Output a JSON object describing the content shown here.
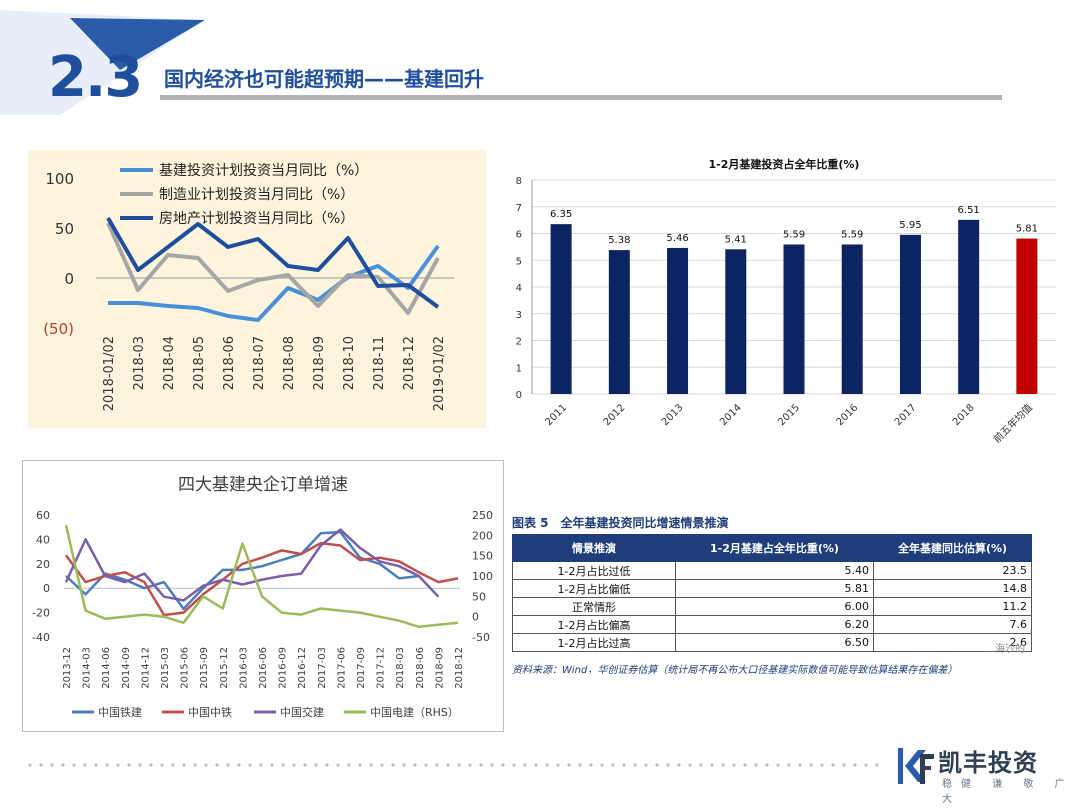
{
  "header": {
    "section_number": "2.3",
    "title": "国内经济也可能超预期——基建回升"
  },
  "colors": {
    "brand_blue": "#1f4e9c",
    "dark_navy": "#0c2461",
    "red": "#c00000"
  },
  "chart_data": [
    {
      "type": "line",
      "x": [
        "2018-01/02",
        "2018-03",
        "2018-04",
        "2018-05",
        "2018-06",
        "2018-07",
        "2018-08",
        "2018-09",
        "2018-10",
        "2018-11",
        "2018-12",
        "2019-01/02"
      ],
      "series": [
        {
          "name": "基建投资计划投资当月同比（%）",
          "color": "#4a90d9",
          "values": [
            -25,
            -25,
            -28,
            -30,
            -38,
            -42,
            -10,
            -22,
            1,
            12,
            -10,
            32
          ]
        },
        {
          "name": "制造业计划投资当月同比（%）",
          "color": "#a6a6a6",
          "values": [
            55,
            -12,
            23,
            20,
            -13,
            -2,
            3,
            -28,
            3,
            1,
            -35,
            20
          ]
        },
        {
          "name": "房地产计划投资当月同比（%）",
          "color": "#1f4e9c",
          "values": [
            60,
            8,
            31,
            54,
            31,
            39,
            12,
            8,
            40,
            -8,
            -7,
            -29
          ]
        }
      ],
      "yticks": [
        "100",
        "50",
        "0",
        "(50)"
      ],
      "ylim": [
        -50,
        100
      ]
    },
    {
      "type": "bar",
      "title": "1-2月基建投资占全年比重(%)",
      "categories": [
        "2011",
        "2012",
        "2013",
        "2014",
        "2015",
        "2016",
        "2017",
        "2018",
        "前五年均值"
      ],
      "values": [
        6.35,
        5.38,
        5.46,
        5.41,
        5.59,
        5.59,
        5.95,
        6.51,
        5.81
      ],
      "labels": [
        "6.35",
        "5.38",
        "5.46",
        "5.41",
        "5.59",
        "5.59",
        "5.95",
        "6.51",
        "5.81"
      ],
      "bar_colors": [
        "#0c2461",
        "#0c2461",
        "#0c2461",
        "#0c2461",
        "#0c2461",
        "#0c2461",
        "#0c2461",
        "#0c2461",
        "#c00000"
      ],
      "yticks": [
        "0",
        "1",
        "2",
        "3",
        "4",
        "5",
        "6",
        "7",
        "8"
      ],
      "ylim": [
        0,
        8
      ]
    },
    {
      "type": "line",
      "title": "四大基建央企订单增速",
      "x": [
        "2013-12",
        "2014-03",
        "2014-06",
        "2014-09",
        "2014-12",
        "2015-03",
        "2015-06",
        "2015-09",
        "2015-12",
        "2016-03",
        "2016-06",
        "2016-09",
        "2016-12",
        "2017-03",
        "2017-06",
        "2017-09",
        "2017-12",
        "2018-03",
        "2018-06",
        "2018-09",
        "2018-12"
      ],
      "yticks_left": [
        "60",
        "40",
        "20",
        "0",
        "-20",
        "-40"
      ],
      "yticks_right": [
        "250",
        "200",
        "150",
        "100",
        "50",
        "0",
        "-50"
      ],
      "ylim_left": [
        -40,
        60
      ],
      "ylim_right": [
        -50,
        250
      ],
      "series": [
        {
          "name": "中国铁建",
          "color": "#4a7ebb",
          "axis": "left",
          "values": [
            10,
            -5,
            12,
            7,
            0,
            5,
            -17,
            0,
            15,
            15,
            18,
            23,
            28,
            45,
            46,
            25,
            20,
            8,
            10,
            null,
            null
          ]
        },
        {
          "name": "中国中铁",
          "color": "#c0504d",
          "axis": "left",
          "values": [
            27,
            5,
            10,
            13,
            5,
            -22,
            -20,
            -5,
            7,
            20,
            25,
            31,
            28,
            37,
            35,
            23,
            25,
            22,
            13,
            5,
            8
          ]
        },
        {
          "name": "中国交建",
          "color": "#7b5ea7",
          "axis": "left",
          "values": [
            5,
            40,
            10,
            5,
            12,
            -7,
            -10,
            2,
            7,
            3,
            7,
            10,
            12,
            35,
            48,
            33,
            22,
            18,
            10,
            -7,
            null
          ]
        },
        {
          "name": "中国电建（RHS）",
          "color": "#9bbb59",
          "axis": "right",
          "values": [
            225,
            15,
            -5,
            0,
            5,
            0,
            -15,
            50,
            20,
            180,
            50,
            10,
            5,
            20,
            15,
            10,
            0,
            -10,
            -25,
            -20,
            -15
          ]
        }
      ]
    }
  ],
  "table5": {
    "title": "图表 5　全年基建投资同比增速情景推演",
    "headers": [
      "情景推演",
      "1-2月基建占全年比重(%)",
      "全年基建同比估算(%)"
    ],
    "rows": [
      [
        "1-2月占比过低",
        "5.40",
        "23.5"
      ],
      [
        "1-2月占比偏低",
        "5.81",
        "14.8"
      ],
      [
        "正常情形",
        "6.00",
        "11.2"
      ],
      [
        "1-2月占比偏高",
        "6.20",
        "7.6"
      ],
      [
        "1-2月占比过高",
        "6.50",
        "2.6"
      ]
    ],
    "note": "资料来源：Wind，华创证券估算（统计局不再公布大口径基建实际数值可能导致估算结果存在偏差）"
  },
  "watermark": "…海沙的",
  "brand": {
    "name": "凯丰投资",
    "slogan": "稳健 谦 敬 广 大"
  }
}
